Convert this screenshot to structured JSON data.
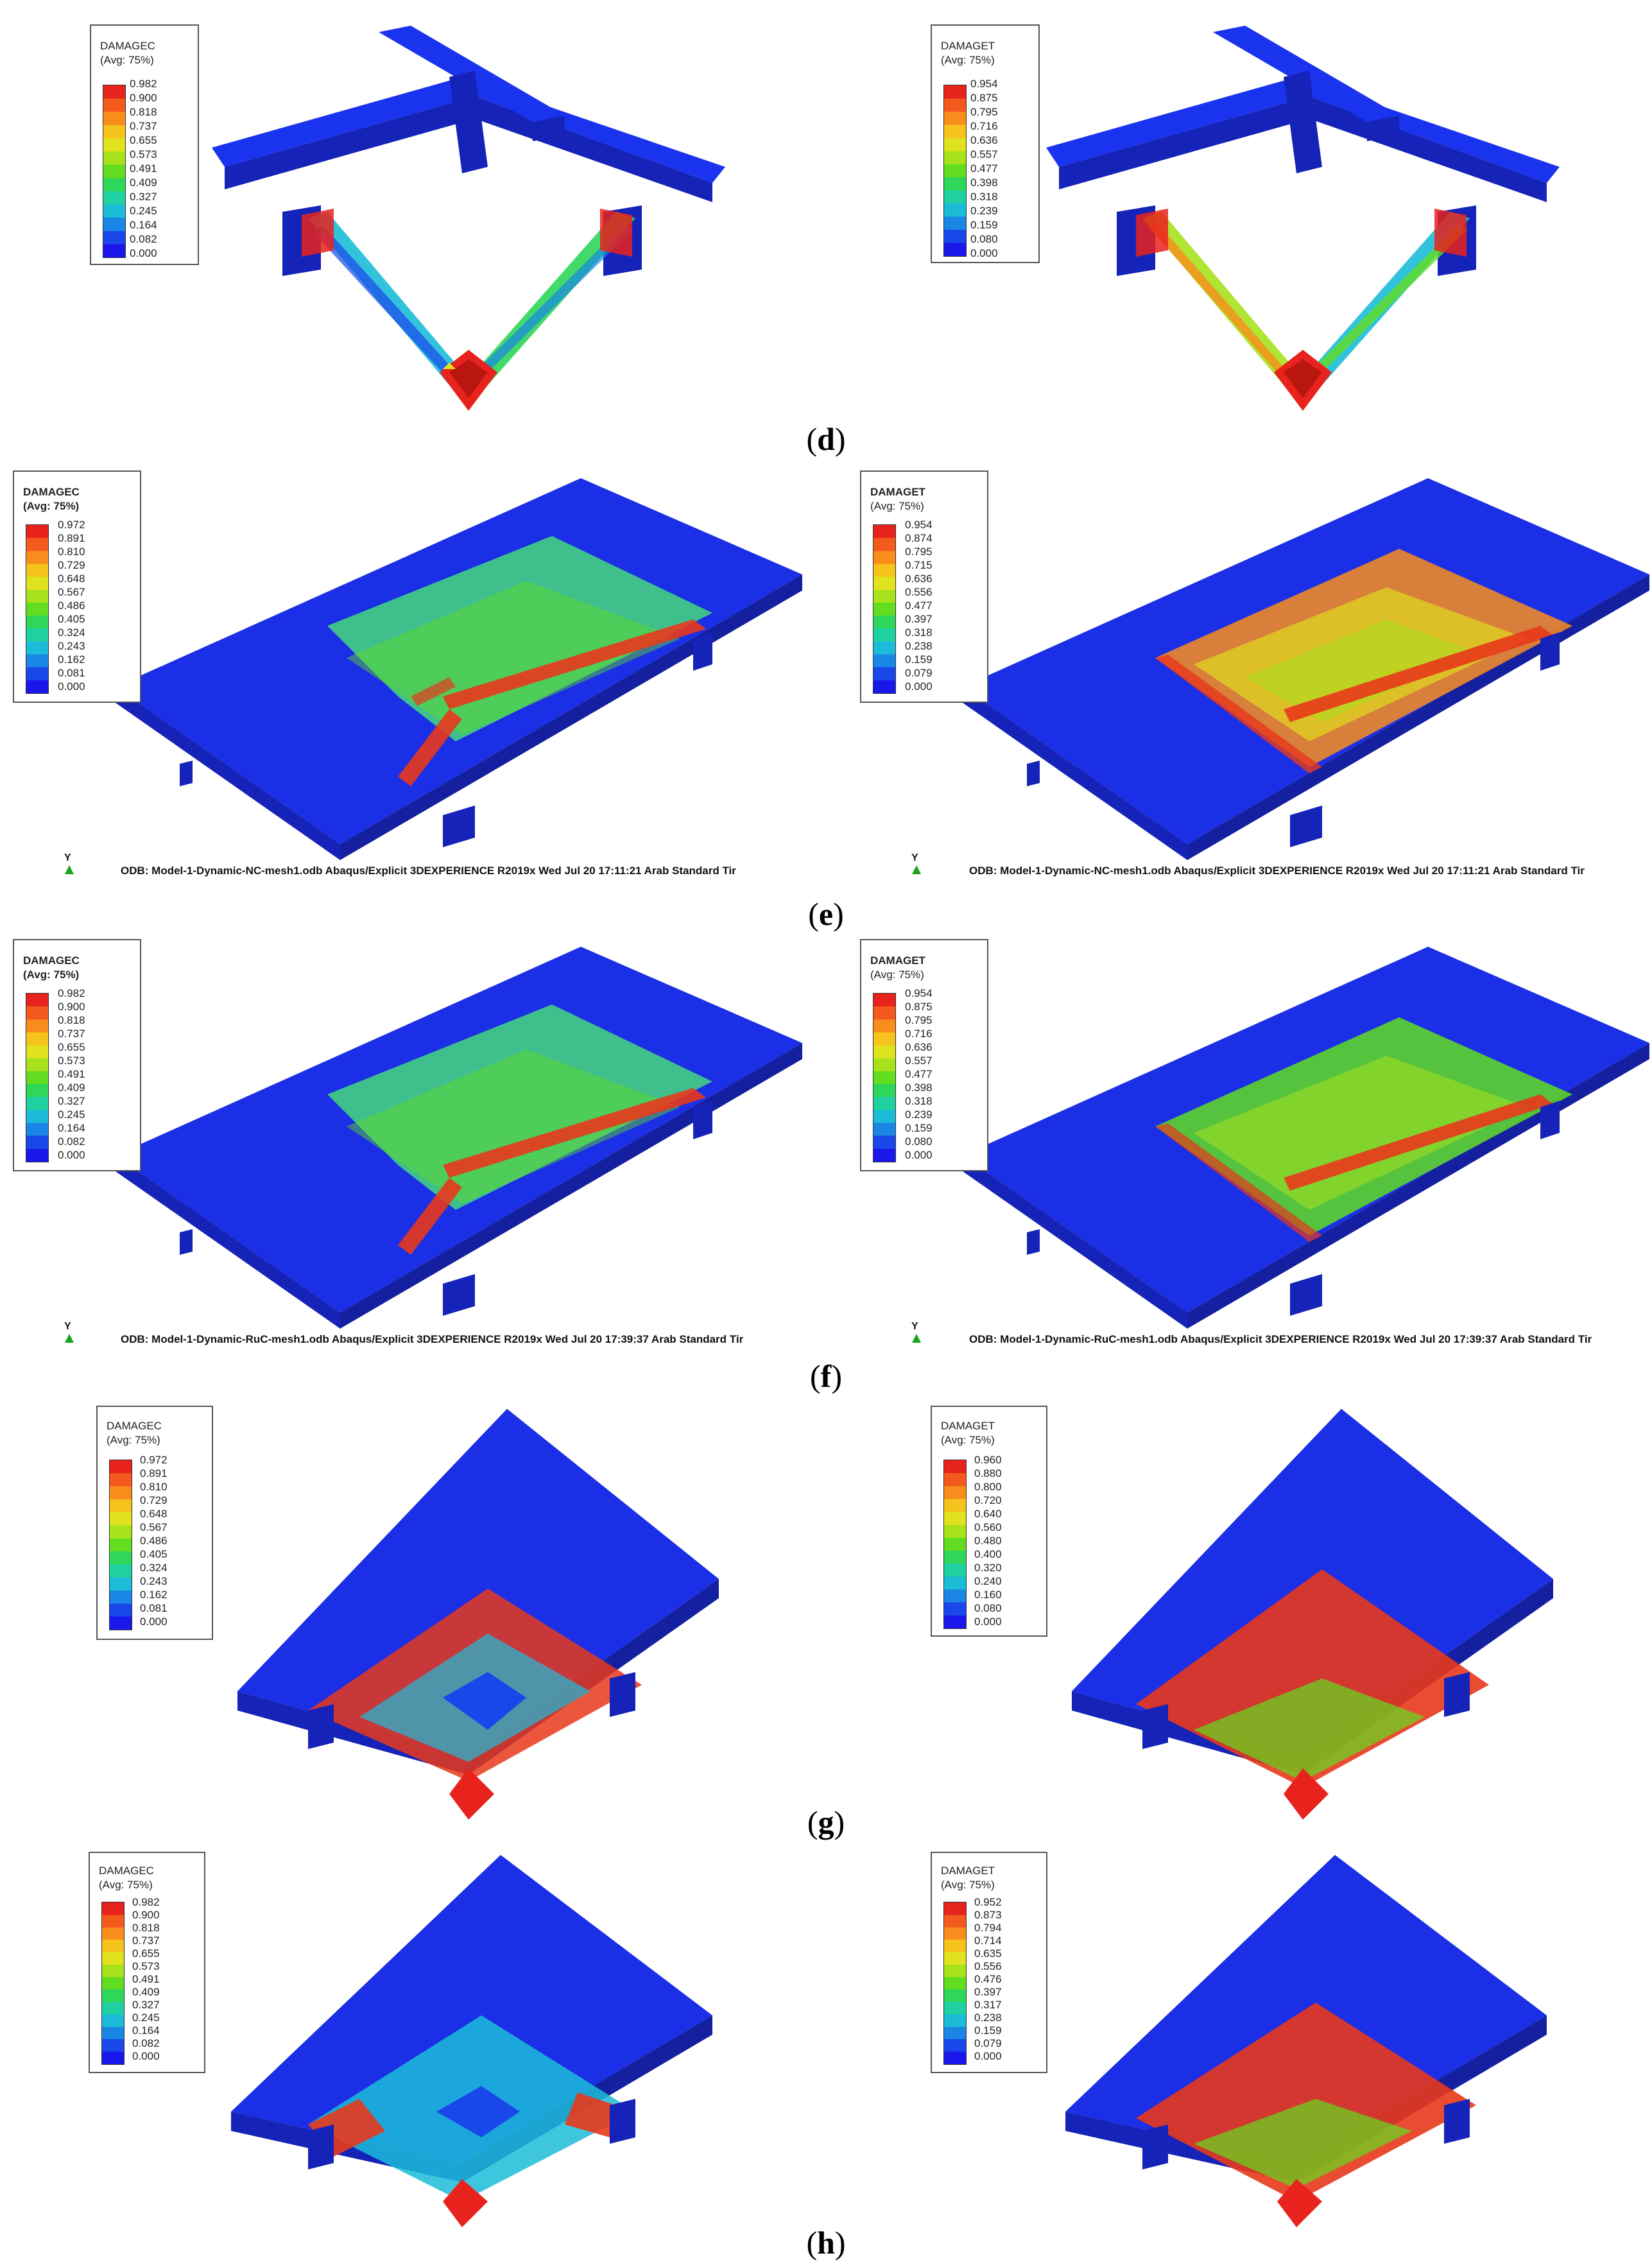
{
  "captions": {
    "d": "d",
    "e": "e",
    "f": "f",
    "g": "g",
    "h": "h"
  },
  "panels": [
    {
      "id": "d-left",
      "legend": {
        "title": "DAMAGEC",
        "subtitle": "(Avg: 75%)",
        "ticks": [
          "0.982",
          "0.900",
          "0.818",
          "0.737",
          "0.655",
          "0.573",
          "0.491",
          "0.409",
          "0.327",
          "0.245",
          "0.164",
          "0.082",
          "0.000"
        ]
      }
    },
    {
      "id": "d-right",
      "legend": {
        "title": "DAMAGET",
        "subtitle": "(Avg: 75%)",
        "ticks": [
          "0.954",
          "0.875",
          "0.795",
          "0.716",
          "0.636",
          "0.557",
          "0.477",
          "0.398",
          "0.318",
          "0.239",
          "0.159",
          "0.080",
          "0.000"
        ]
      }
    },
    {
      "id": "e-left",
      "legend": {
        "title": "DAMAGEC",
        "subtitle": "(Avg: 75%)",
        "ticks": [
          "0.972",
          "0.891",
          "0.810",
          "0.729",
          "0.648",
          "0.567",
          "0.486",
          "0.405",
          "0.324",
          "0.243",
          "0.162",
          "0.081",
          "0.000"
        ]
      },
      "axis": "Y",
      "footer": "ODB: Model-1-Dynamic-NC-mesh1.odb   Abaqus/Explicit 3DEXPERIENCE R2019x    Wed Jul 20 17:11:21 Arab Standard Tir"
    },
    {
      "id": "e-right",
      "legend": {
        "title": "DAMAGET",
        "subtitle": "(Avg: 75%)",
        "ticks": [
          "0.954",
          "0.874",
          "0.795",
          "0.715",
          "0.636",
          "0.556",
          "0.477",
          "0.397",
          "0.318",
          "0.238",
          "0.159",
          "0.079",
          "0.000"
        ]
      },
      "axis": "Y",
      "footer": "ODB: Model-1-Dynamic-NC-mesh1.odb   Abaqus/Explicit 3DEXPERIENCE R2019x    Wed Jul 20 17:11:21 Arab Standard Tir"
    },
    {
      "id": "f-left",
      "legend": {
        "title": "DAMAGEC",
        "subtitle": "(Avg: 75%)",
        "ticks": [
          "0.982",
          "0.900",
          "0.818",
          "0.737",
          "0.655",
          "0.573",
          "0.491",
          "0.409",
          "0.327",
          "0.245",
          "0.164",
          "0.082",
          "0.000"
        ]
      },
      "axis": "Y",
      "footer": "ODB: Model-1-Dynamic-RuC-mesh1.odb   Abaqus/Explicit 3DEXPERIENCE R2019x    Wed Jul 20 17:39:37 Arab Standard Tir"
    },
    {
      "id": "f-right",
      "legend": {
        "title": "DAMAGET",
        "subtitle": "(Avg: 75%)",
        "ticks": [
          "0.954",
          "0.875",
          "0.795",
          "0.716",
          "0.636",
          "0.557",
          "0.477",
          "0.398",
          "0.318",
          "0.239",
          "0.159",
          "0.080",
          "0.000"
        ]
      },
      "axis": "Y",
      "footer": "ODB: Model-1-Dynamic-RuC-mesh1.odb   Abaqus/Explicit 3DEXPERIENCE R2019x    Wed Jul 20 17:39:37 Arab Standard Tir"
    },
    {
      "id": "g-left",
      "legend": {
        "title": "DAMAGEC",
        "subtitle": "(Avg: 75%)",
        "ticks": [
          "0.972",
          "0.891",
          "0.810",
          "0.729",
          "0.648",
          "0.567",
          "0.486",
          "0.405",
          "0.324",
          "0.243",
          "0.162",
          "0.081",
          "0.000"
        ]
      }
    },
    {
      "id": "g-right",
      "legend": {
        "title": "DAMAGET",
        "subtitle": "(Avg: 75%)",
        "ticks": [
          "0.960",
          "0.880",
          "0.800",
          "0.720",
          "0.640",
          "0.560",
          "0.480",
          "0.400",
          "0.320",
          "0.240",
          "0.160",
          "0.080",
          "0.000"
        ]
      }
    },
    {
      "id": "h-left",
      "legend": {
        "title": "DAMAGEC",
        "subtitle": "(Avg: 75%)",
        "ticks": [
          "0.982",
          "0.900",
          "0.818",
          "0.737",
          "0.655",
          "0.573",
          "0.491",
          "0.409",
          "0.327",
          "0.245",
          "0.164",
          "0.082",
          "0.000"
        ]
      }
    },
    {
      "id": "h-right",
      "legend": {
        "title": "DAMAGET",
        "subtitle": "(Avg: 75%)",
        "ticks": [
          "0.952",
          "0.873",
          "0.794",
          "0.714",
          "0.635",
          "0.556",
          "0.476",
          "0.397",
          "0.317",
          "0.238",
          "0.159",
          "0.079",
          "0.000"
        ]
      }
    }
  ],
  "colors": {
    "scale": [
      "#e8221c",
      "#f4591d",
      "#f98d1c",
      "#f6c21c",
      "#e0e21d",
      "#a7e21d",
      "#62dd20",
      "#2ed659",
      "#1fd1a0",
      "#1cbcd8",
      "#1a86e6",
      "#1a47ea",
      "#1a17ea"
    ],
    "model_blue": "#1a2fe6",
    "damage_green": "#47d87a",
    "damage_red": "#e8381b"
  }
}
